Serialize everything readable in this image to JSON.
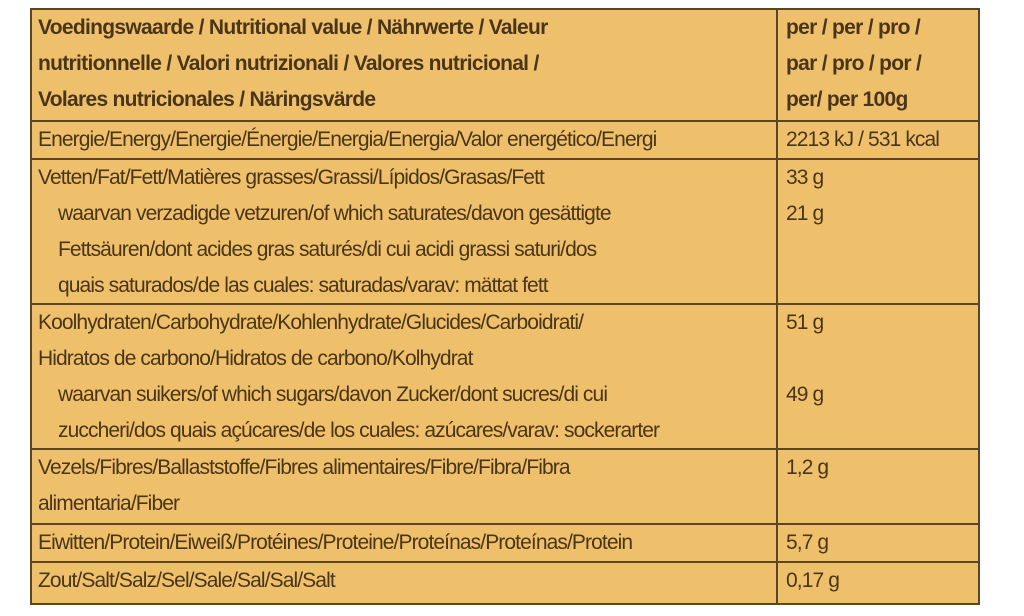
{
  "header": {
    "left": [
      "Voedingswaarde / Nutritional value / Nährwerte / Valeur",
      "nutritionnelle / Valori nutrizionali / Valores nutricional /",
      "Volares nutricionales / Näringsvärde"
    ],
    "right": [
      "per / per / pro /",
      "par / pro / por /",
      "per/ per 100g"
    ]
  },
  "rows": [
    {
      "lines": [
        "Energie/Energy/Energie/Énergie/Energia/Energia/Valor energético/Energi"
      ],
      "value": "2213 kJ / 531 kcal"
    },
    {
      "lines": [
        "Vetten/Fat/Fett/Matières grasses/Grassi/Lípidos/Grasas/Fett"
      ],
      "value": "33 g",
      "sub": {
        "lines": [
          "waarvan verzadigde vetzuren/of which saturates/davon gesättigte",
          "Fettsäuren/dont acides gras saturés/di cui acidi grassi saturi/dos",
          "quais saturados/de las cuales: saturadas/varav: mättat fett"
        ],
        "value": "21 g"
      }
    },
    {
      "lines": [
        "Koolhydraten/Carbohydrate/Kohlenhydrate/Glucides/Carboidrati/",
        "Hidratos de carbono/Hidratos de carbono/Kolhydrat"
      ],
      "value": "51 g",
      "sub": {
        "lines": [
          "waarvan suikers/of which sugars/davon Zucker/dont sucres/di cui",
          "zuccheri/dos quais açúcares/de los cuales: azúcares/varav: sockerarter"
        ],
        "value": "49 g"
      }
    },
    {
      "lines": [
        "Vezels/Fibres/Ballaststoffe/Fibres alimentaires/Fibre/Fibra/Fibra",
        "alimentaria/Fiber"
      ],
      "value": "1,2 g"
    },
    {
      "lines": [
        "Eiwitten/Protein/Eiweiß/Protéines/Proteine/Proteínas/Proteínas/Protein"
      ],
      "value": "5,7 g"
    },
    {
      "lines": [
        "Zout/Salt/Salz/Sel/Sale/Sal/Sal/Salt"
      ],
      "value": "0,17 g"
    }
  ]
}
